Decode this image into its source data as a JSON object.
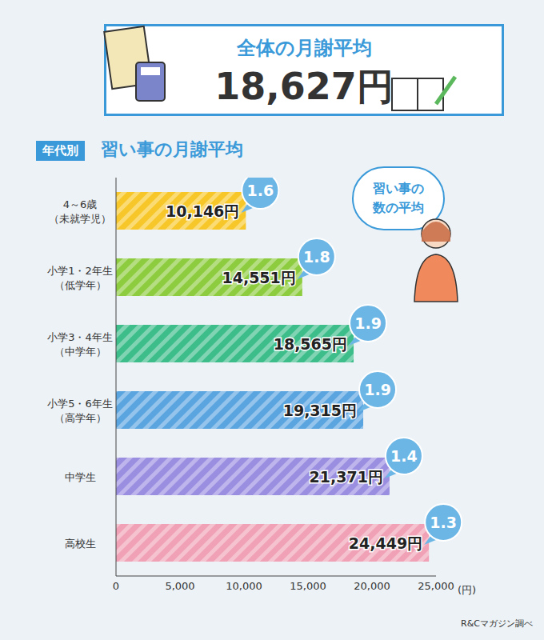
{
  "header": {
    "label": "全体の月謝平均",
    "value": "18,627円"
  },
  "chart_data": {
    "type": "bar",
    "orientation": "horizontal",
    "title_tag": "年代別",
    "title": "習い事の月謝平均",
    "categories": [
      "4～6歳\n（未就学児）",
      "小学1・2年生\n（低学年）",
      "小学3・4年生\n（中学年）",
      "小学5・6年生\n（高学年）",
      "中学生",
      "高校生"
    ],
    "values": [
      10146,
      14551,
      18565,
      19315,
      21371,
      24449
    ],
    "value_labels": [
      "10,146円",
      "14,551円",
      "18,565円",
      "19,315円",
      "21,371円",
      "24,449円"
    ],
    "data_labels": true,
    "lesson_counts": [
      1.6,
      1.8,
      1.9,
      1.9,
      1.4,
      1.3
    ],
    "callout": "習い事の\n数の平均",
    "colors": [
      "#f7c72a",
      "#8dcc3f",
      "#3dbd8a",
      "#5aa5e0",
      "#9a8ee0",
      "#f0a1b6"
    ],
    "xlim": [
      0,
      25000
    ],
    "xticks": [
      0,
      {
        "value": 5000,
        "label": "5,000"
      },
      {
        "value": 10000,
        "label": "10,000"
      },
      {
        "value": 15000,
        "label": "15,000"
      },
      {
        "value": 20000,
        "label": "20,000"
      },
      {
        "value": 25000,
        "label": "25,000"
      }
    ],
    "xlabel": "(円)",
    "grid": false,
    "source": "R&Cマガジン調べ"
  }
}
